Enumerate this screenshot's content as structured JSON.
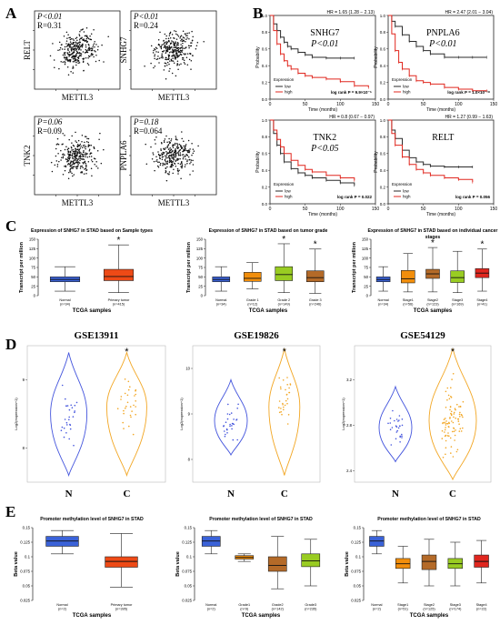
{
  "colors": {
    "low": "#2b2b2b",
    "high": "#e0271f",
    "normal_box": "#3a62d8",
    "tumor_box": "#ee4a16",
    "grade1_box": "#f28e0b",
    "grade2_box": "#99cc22",
    "grade3_box": "#b46a28",
    "stage1_box": "#f28e0b",
    "stage2_box": "#b46a28",
    "stage3_box": "#99cc22",
    "stage4_box": "#e0271f",
    "violin_n": "#4455dd",
    "violin_c": "#f2a623"
  },
  "panel_letters": {
    "a": "A",
    "b": "B",
    "c": "C",
    "d": "D",
    "e": "E"
  },
  "chart_data": [
    {
      "panel": "A",
      "type": "scatter",
      "plots": [
        {
          "xlabel": "METTL3",
          "ylabel": "RELT",
          "p": "P<0.01",
          "r": "R=0.31",
          "r_value": 0.31
        },
        {
          "xlabel": "METTL3",
          "ylabel": "SNHG7",
          "p": "P<0.01",
          "r": "R=0.24",
          "r_value": 0.24
        },
        {
          "xlabel": "METTL3",
          "ylabel": "TNK2",
          "p": "P=0.06",
          "r": "R=0.09",
          "r_value": 0.09
        },
        {
          "xlabel": "METTL3",
          "ylabel": "PNPLA6",
          "p": "P=0.18",
          "r": "R=0.064",
          "r_value": 0.064
        }
      ]
    },
    {
      "panel": "B",
      "type": "line",
      "xlabel": "Time (months)",
      "ylabel": "Probability",
      "legend_title": "Expression",
      "legend": [
        "low",
        "high"
      ],
      "plots": [
        {
          "gene": "SNHG7",
          "p": "P<0.01",
          "hr": "HR = 1.65 (1.28 − 2.13)",
          "logrank": "log rank P = 9.9×10⁻⁵",
          "xticks": [
            "0",
            "50",
            "100",
            "150"
          ],
          "xmax": 150,
          "series": [
            {
              "name": "low",
              "x": [
                0,
                5,
                10,
                15,
                20,
                25,
                30,
                40,
                50,
                60,
                80,
                100,
                120
              ],
              "y": [
                1,
                0.9,
                0.82,
                0.74,
                0.68,
                0.63,
                0.6,
                0.56,
                0.53,
                0.5,
                0.49,
                0.49,
                0.49
              ]
            },
            {
              "name": "high",
              "x": [
                0,
                5,
                10,
                15,
                20,
                25,
                30,
                40,
                50,
                60,
                80,
                100,
                120,
                140
              ],
              "y": [
                1,
                0.82,
                0.66,
                0.54,
                0.46,
                0.4,
                0.36,
                0.31,
                0.28,
                0.26,
                0.24,
                0.21,
                0.16,
                0.14
              ]
            }
          ]
        },
        {
          "gene": "PNPLA6",
          "p": "P<0.01",
          "hr": "HR = 2.47 (2.01 − 3.04)",
          "logrank": "log rank P = 1.0×10⁻¹⁸",
          "xticks": [
            "0",
            "50",
            "100",
            "150"
          ],
          "xmax": 150,
          "series": [
            {
              "name": "low",
              "x": [
                0,
                5,
                10,
                20,
                30,
                40,
                50,
                60,
                80,
                100,
                120,
                140
              ],
              "y": [
                1,
                0.93,
                0.87,
                0.77,
                0.69,
                0.63,
                0.58,
                0.54,
                0.5,
                0.5,
                0.5,
                0.5
              ]
            },
            {
              "name": "high",
              "x": [
                0,
                5,
                10,
                15,
                20,
                30,
                40,
                50,
                60,
                80,
                100,
                120,
                140
              ],
              "y": [
                1,
                0.78,
                0.58,
                0.44,
                0.36,
                0.28,
                0.22,
                0.2,
                0.18,
                0.14,
                0.12,
                0.1,
                0.1
              ]
            }
          ]
        },
        {
          "gene": "TNK2",
          "p": "P<0.05",
          "hr": "HR = 0.8 (0.67 − 0.97)",
          "logrank": "log rank P = 0.022",
          "xticks": [
            "0",
            "50",
            "100",
            "150"
          ],
          "xmax": 150,
          "series": [
            {
              "name": "low",
              "x": [
                0,
                5,
                10,
                15,
                20,
                30,
                40,
                50,
                60,
                80,
                100,
                120
              ],
              "y": [
                1,
                0.84,
                0.7,
                0.6,
                0.5,
                0.42,
                0.37,
                0.34,
                0.31,
                0.28,
                0.25,
                0.22
              ]
            },
            {
              "name": "high",
              "x": [
                0,
                5,
                10,
                15,
                20,
                30,
                40,
                50,
                60,
                80,
                100,
                120
              ],
              "y": [
                1,
                0.88,
                0.77,
                0.68,
                0.6,
                0.52,
                0.46,
                0.41,
                0.38,
                0.34,
                0.31,
                0.28
              ]
            }
          ]
        },
        {
          "gene": "RELT",
          "p": "",
          "hr": "HR = 1.27 (0.99 − 1.63)",
          "logrank": "log rank P = 0.056",
          "xticks": [
            "0",
            "50",
            "100",
            "150"
          ],
          "xmax": 150,
          "series": [
            {
              "name": "low",
              "x": [
                0,
                5,
                10,
                20,
                30,
                40,
                50,
                60,
                80,
                100,
                120
              ],
              "y": [
                1,
                0.88,
                0.78,
                0.64,
                0.55,
                0.5,
                0.47,
                0.45,
                0.44,
                0.44,
                0.44
              ]
            },
            {
              "name": "high",
              "x": [
                0,
                5,
                10,
                20,
                30,
                40,
                50,
                60,
                80,
                100,
                120
              ],
              "y": [
                1,
                0.84,
                0.7,
                0.56,
                0.47,
                0.41,
                0.37,
                0.34,
                0.31,
                0.29,
                0.26
              ]
            }
          ]
        }
      ]
    },
    {
      "panel": "C",
      "type": "box",
      "plots": [
        {
          "title": "Expression of SNHG7 in STAD based on Sample types",
          "xlabel": "TCGA samples",
          "ylabel": "Transcript per million",
          "ylim": [
            0,
            150
          ],
          "yticks": [
            "0",
            "25",
            "50",
            "75",
            "100",
            "125",
            "150"
          ],
          "groups": [
            {
              "name": "Normal",
              "n": "(n=34)",
              "min": 12,
              "q1": 37,
              "median": 43,
              "q3": 50,
              "max": 77,
              "color": "normal_box",
              "star": ""
            },
            {
              "name": "Primary tumor",
              "n": "(n=415)",
              "min": 8,
              "q1": 40,
              "median": 51,
              "q3": 70,
              "max": 135,
              "color": "tumor_box",
              "star": "*"
            }
          ]
        },
        {
          "title": "Expression of SNHG7 in STAD based on tumor grade",
          "xlabel": "TCGA samples",
          "ylabel": "Transcript per million",
          "ylim": [
            0,
            150
          ],
          "yticks": [
            "0",
            "25",
            "50",
            "75",
            "100",
            "125",
            "150"
          ],
          "groups": [
            {
              "name": "Normal",
              "n": "(n=34)",
              "min": 12,
              "q1": 37,
              "median": 43,
              "q3": 50,
              "max": 77,
              "color": "normal_box",
              "star": ""
            },
            {
              "name": "Grade 1",
              "n": "(n=12)",
              "min": 18,
              "q1": 38,
              "median": 46,
              "q3": 62,
              "max": 88,
              "color": "grade1_box",
              "star": ""
            },
            {
              "name": "Grade 2",
              "n": "(n=149)",
              "min": 8,
              "q1": 40,
              "median": 56,
              "q3": 77,
              "max": 138,
              "color": "grade2_box",
              "star": "*"
            },
            {
              "name": "Grade 3",
              "n": "(n=246)",
              "min": 6,
              "q1": 37,
              "median": 48,
              "q3": 66,
              "max": 124,
              "color": "grade3_box",
              "star": "*"
            }
          ]
        },
        {
          "title": "Expression of SNHG7 in STAD based on individual cancer stages",
          "xlabel": "TCGA samples",
          "ylabel": "Transcript per million",
          "ylim": [
            0,
            150
          ],
          "yticks": [
            "0",
            "25",
            "50",
            "75",
            "100",
            "125",
            "150"
          ],
          "groups": [
            {
              "name": "Normal",
              "n": "(n=34)",
              "min": 12,
              "q1": 37,
              "median": 43,
              "q3": 50,
              "max": 77,
              "color": "normal_box",
              "star": ""
            },
            {
              "name": "Stage1",
              "n": "(n=56)",
              "min": 10,
              "q1": 34,
              "median": 45,
              "q3": 67,
              "max": 112,
              "color": "stage1_box",
              "star": ""
            },
            {
              "name": "Stage2",
              "n": "(n=123)",
              "min": 10,
              "q1": 46,
              "median": 58,
              "q3": 70,
              "max": 128,
              "color": "stage2_box",
              "star": "*"
            },
            {
              "name": "Stage3",
              "n": "(n=169)",
              "min": 8,
              "q1": 35,
              "median": 48,
              "q3": 66,
              "max": 118,
              "color": "stage3_box",
              "star": ""
            },
            {
              "name": "Stage4",
              "n": "(n=41)",
              "min": 12,
              "q1": 48,
              "median": 60,
              "q3": 72,
              "max": 124,
              "color": "stage4_box",
              "star": "*"
            }
          ]
        }
      ]
    },
    {
      "panel": "D",
      "type": "violin",
      "plots": [
        {
          "title": "GSE13911",
          "ylabel": "Log2(expression+1)",
          "ylim": [
            7.5,
            9.5
          ],
          "yticks": [
            "8",
            "9"
          ],
          "categories": [
            "N",
            "C"
          ],
          "medians": [
            8.4,
            8.6
          ],
          "star": "*"
        },
        {
          "title": "GSE19826",
          "ylabel": "Log2(expression+1)",
          "ylim": [
            7.5,
            10.5
          ],
          "yticks": [
            "8",
            "9",
            "10"
          ],
          "categories": [
            "N",
            "C"
          ],
          "medians": [
            8.4,
            8.7
          ],
          "star": "*"
        },
        {
          "title": "GSE54129",
          "ylabel": "Log2(expression+1)",
          "ylim": [
            2.3,
            3.5
          ],
          "yticks": [
            "2.4",
            "2.8",
            "3.2"
          ],
          "categories": [
            "N",
            "C"
          ],
          "medians": [
            2.62,
            2.68
          ],
          "star": "*"
        }
      ]
    },
    {
      "panel": "E",
      "type": "box",
      "plots": [
        {
          "title": "Promoter methylation level of SNHG7 in STAD",
          "xlabel": "TCGA samples",
          "ylabel": "Beta value",
          "ylim": [
            0.025,
            0.15
          ],
          "yticks": [
            "0.025",
            "0.05",
            "0.075",
            "0.1",
            "0.125",
            "0.15"
          ],
          "groups": [
            {
              "name": "Normal",
              "n": "(n=2)",
              "min": 0.105,
              "q1": 0.118,
              "median": 0.127,
              "q3": 0.135,
              "max": 0.145,
              "color": "normal_box"
            },
            {
              "name": "Primary tumor",
              "n": "(n=395)",
              "min": 0.048,
              "q1": 0.082,
              "median": 0.092,
              "q3": 0.1,
              "max": 0.14,
              "color": "tumor_box"
            }
          ]
        },
        {
          "title": "Promoter methylation level of SNHG7 in STAD",
          "xlabel": "TCGA samples",
          "ylabel": "Beta value",
          "ylim": [
            0.025,
            0.15
          ],
          "yticks": [
            "0.025",
            "0.05",
            "0.075",
            "0.1",
            "0.125",
            "0.15"
          ],
          "groups": [
            {
              "name": "Normal",
              "n": "(n=2)",
              "min": 0.105,
              "q1": 0.118,
              "median": 0.127,
              "q3": 0.135,
              "max": 0.145,
              "color": "normal_box"
            },
            {
              "name": "Grade1",
              "n": "(n=9)",
              "min": 0.092,
              "q1": 0.096,
              "median": 0.099,
              "q3": 0.102,
              "max": 0.105,
              "color": "grade1_box"
            },
            {
              "name": "Grade2",
              "n": "(n=142)",
              "min": 0.045,
              "q1": 0.075,
              "median": 0.085,
              "q3": 0.1,
              "max": 0.135,
              "color": "grade3_box"
            },
            {
              "name": "Grade3",
              "n": "(n=235)",
              "min": 0.05,
              "q1": 0.083,
              "median": 0.093,
              "q3": 0.105,
              "max": 0.13,
              "color": "grade2_box"
            }
          ]
        },
        {
          "title": "Promoter methylation level of SNHG7 in STAD",
          "xlabel": "TCGA samples",
          "ylabel": "Beta value",
          "ylim": [
            0.025,
            0.15
          ],
          "yticks": [
            "0.025",
            "0.05",
            "0.075",
            "0.1",
            "0.125",
            "0.15"
          ],
          "groups": [
            {
              "name": "Normal",
              "n": "(n=2)",
              "min": 0.105,
              "q1": 0.118,
              "median": 0.127,
              "q3": 0.135,
              "max": 0.145,
              "color": "normal_box"
            },
            {
              "name": "Stage1",
              "n": "(n=51)",
              "min": 0.055,
              "q1": 0.08,
              "median": 0.088,
              "q3": 0.097,
              "max": 0.118,
              "color": "stage1_box"
            },
            {
              "name": "Stage2",
              "n": "(n=125)",
              "min": 0.05,
              "q1": 0.078,
              "median": 0.092,
              "q3": 0.103,
              "max": 0.13,
              "color": "stage2_box"
            },
            {
              "name": "Stage3",
              "n": "(n=174)",
              "min": 0.05,
              "q1": 0.08,
              "median": 0.088,
              "q3": 0.097,
              "max": 0.125,
              "color": "stage3_box"
            },
            {
              "name": "Stage4",
              "n": "(n=22)",
              "min": 0.055,
              "q1": 0.082,
              "median": 0.092,
              "q3": 0.103,
              "max": 0.128,
              "color": "stage4_box"
            }
          ]
        }
      ]
    }
  ]
}
